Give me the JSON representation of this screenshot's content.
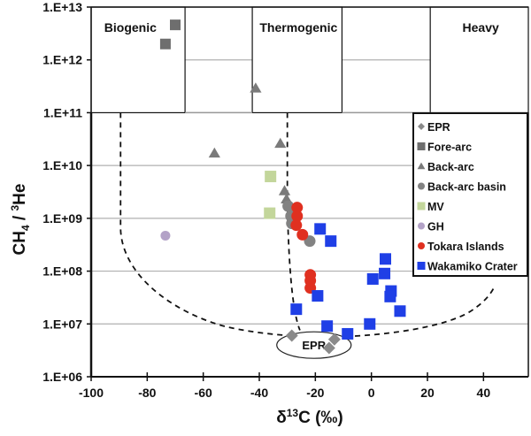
{
  "chart_data": {
    "type": "scatter",
    "title": "",
    "xlabel": "δ13C (‰)",
    "xlabel_parts": {
      "delta": "δ",
      "sup": "13",
      "rest": "C (‰)"
    },
    "ylabel_parts": {
      "main": "CH",
      "sub": "4",
      "mid": " / ",
      "sup": "3",
      "rest": "He"
    },
    "xlim": [
      -100,
      56
    ],
    "ylim_log10": [
      6,
      13
    ],
    "yscale": "log",
    "x_ticks": [
      -100,
      -80,
      -60,
      -40,
      -20,
      0,
      20,
      40
    ],
    "x_tick_labels": [
      "-100",
      "-80",
      "-60",
      "-40",
      "-20",
      "0",
      "20",
      "40"
    ],
    "y_ticks_log10": [
      6,
      7,
      8,
      9,
      10,
      11,
      12,
      13
    ],
    "y_tick_labels": [
      "1.E+06",
      "1.E+07",
      "1.E+08",
      "1.E+09",
      "1.E+10",
      "1.E+11",
      "1.E+12",
      "1.E+13"
    ],
    "grid": "horizontal",
    "legend_position": "right",
    "region_labels": [
      {
        "text": "Biogenic"
      },
      {
        "text": "Thermogenic"
      },
      {
        "text": "Heavy"
      }
    ],
    "annotation": "EPR",
    "series": [
      {
        "name": "EPR",
        "marker": "diamond",
        "color": "#8a8a8a",
        "points": [
          [
            -28.4,
            6000000.0
          ],
          [
            -13.2,
            5100000.0
          ],
          [
            -15.1,
            3500000.0
          ]
        ]
      },
      {
        "name": "Fore-arc",
        "marker": "square",
        "color": "#6e6e6e",
        "points": [
          [
            -70,
            4600000000000.0
          ],
          [
            -73.5,
            2000000000000.0
          ]
        ]
      },
      {
        "name": "Back-arc",
        "marker": "triangle",
        "color": "#7a7a7a",
        "points": [
          [
            -41.3,
            290000000000.0
          ],
          [
            -56,
            17000000000.0
          ],
          [
            -32.5,
            26000000000.0
          ],
          [
            -31,
            3300000000.0
          ],
          [
            -30.3,
            2300000000.0
          ],
          [
            -29.5,
            1900000000.0
          ]
        ]
      },
      {
        "name": "Back-arc basin",
        "marker": "circle",
        "color": "#828282",
        "points": [
          [
            -29.7,
            1700000000.0
          ],
          [
            -28.7,
            1100000000.0
          ],
          [
            -28.4,
            800000000.0
          ],
          [
            -22,
            370000000.0
          ]
        ]
      },
      {
        "name": "MV",
        "marker": "square",
        "color": "#c3d69b",
        "points": [
          [
            -36,
            6200000000.0
          ],
          [
            -36.3,
            1250000000.0
          ]
        ]
      },
      {
        "name": "GH",
        "marker": "circle",
        "color": "#b3a2c7",
        "points": [
          [
            -73.5,
            470000000.0
          ]
        ]
      },
      {
        "name": "Tokara Islands",
        "marker": "circle",
        "color": "#e03020",
        "points": [
          [
            -26.5,
            1600000000.0
          ],
          [
            -26.5,
            1100000000.0
          ],
          [
            -26.8,
            740000000.0
          ],
          [
            -24.6,
            490000000.0
          ],
          [
            -21.8,
            85000000.0
          ],
          [
            -21.8,
            66000000.0
          ],
          [
            -21.8,
            48000000.0
          ]
        ]
      },
      {
        "name": "Wakamiko Crater",
        "marker": "square",
        "color": "#1f3fe6",
        "points": [
          [
            -18.3,
            630000000.0
          ],
          [
            -14.5,
            370000000.0
          ],
          [
            -19.2,
            34000000.0
          ],
          [
            -26.8,
            19000000.0
          ],
          [
            -15.8,
            9100000.0
          ],
          [
            -8.5,
            6500000.0
          ],
          [
            -0.6,
            10000000.0
          ],
          [
            0.5,
            71000000.0
          ],
          [
            5,
            170000000.0
          ],
          [
            4.7,
            90000000.0
          ],
          [
            7,
            42000000.0
          ],
          [
            6.7,
            33000000.0
          ],
          [
            10.2,
            17500000.0
          ]
        ]
      }
    ]
  }
}
